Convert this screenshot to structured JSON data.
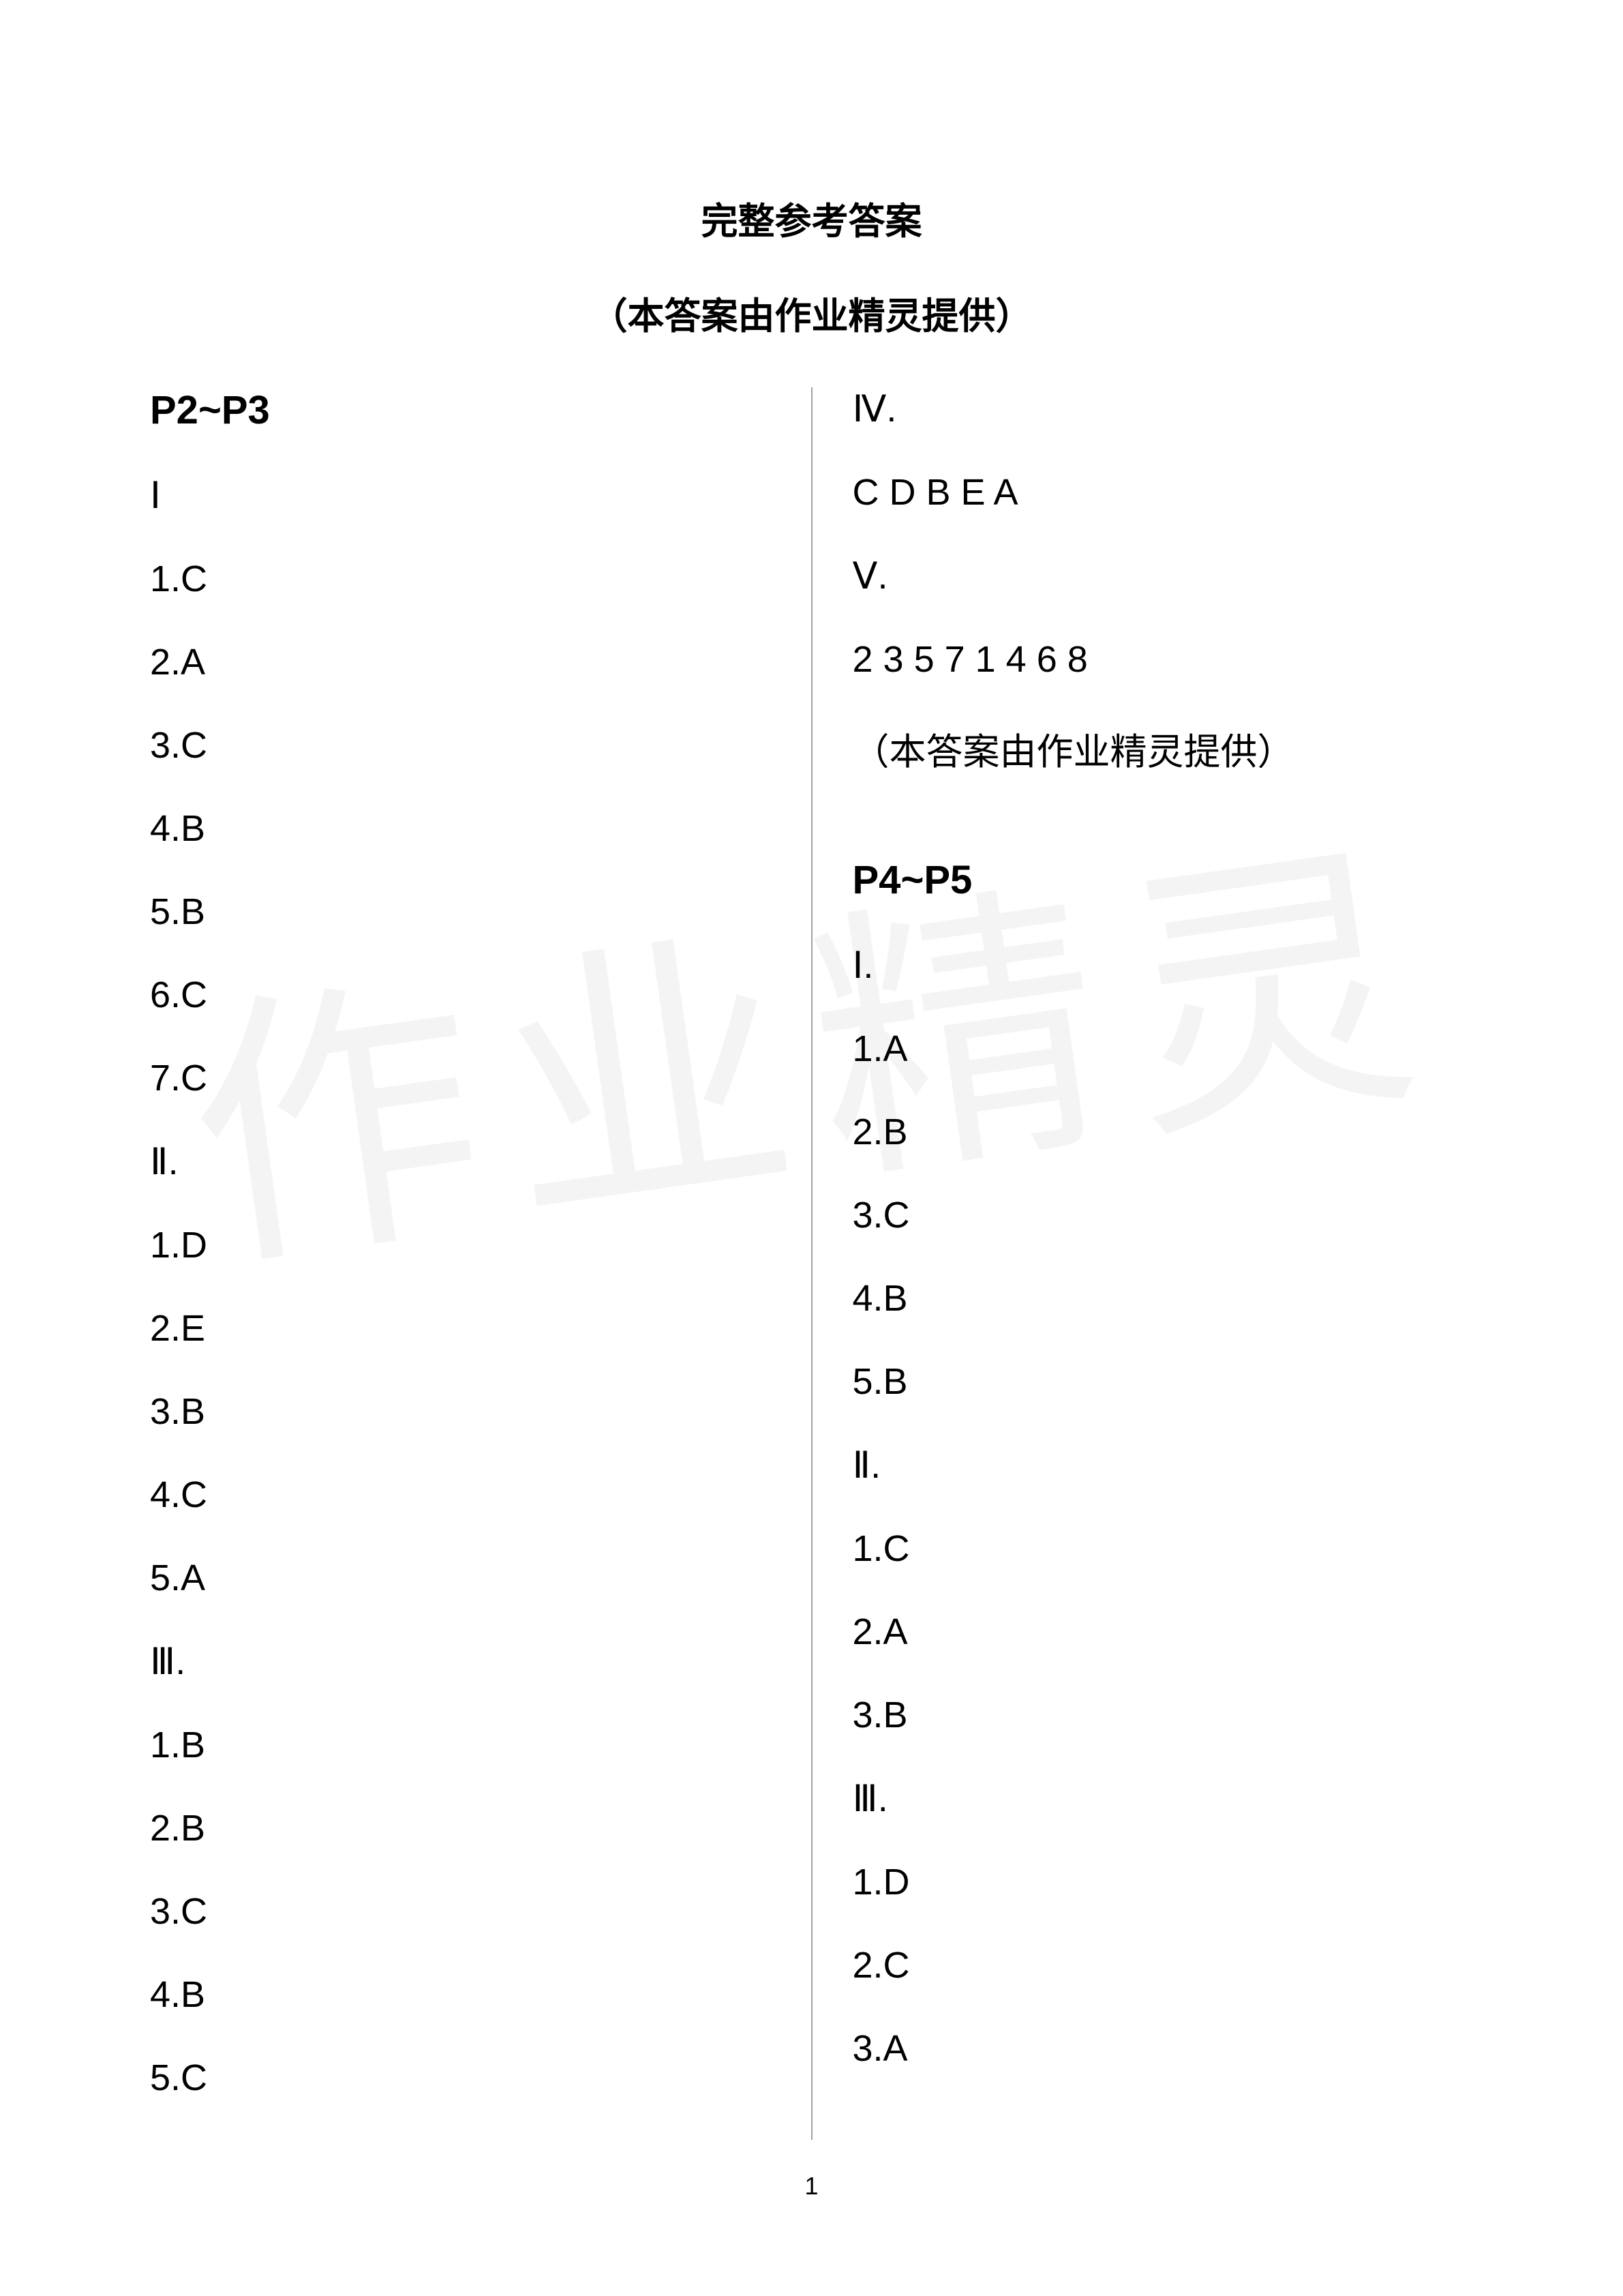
{
  "title": "完整参考答案",
  "subtitle": "（本答案由作业精灵提供）",
  "watermark_text": "作业精灵",
  "page_number": "1",
  "colors": {
    "text": "#000000",
    "background": "#ffffff",
    "divider": "#a0a0a0",
    "watermark": "#f0f0f0"
  },
  "typography": {
    "title_fontsize": 54,
    "header_fontsize": 58,
    "body_fontsize": 54,
    "pagenum_fontsize": 36,
    "font_family": "Microsoft YaHei"
  },
  "left_column": [
    {
      "type": "header",
      "text": "P2~P3"
    },
    {
      "type": "item",
      "text": "Ⅰ"
    },
    {
      "type": "item",
      "text": "1.C"
    },
    {
      "type": "item",
      "text": "2.A"
    },
    {
      "type": "item",
      "text": "3.C"
    },
    {
      "type": "item",
      "text": "4.B"
    },
    {
      "type": "item",
      "text": "5.B"
    },
    {
      "type": "item",
      "text": "6.C"
    },
    {
      "type": "item",
      "text": "7.C"
    },
    {
      "type": "item",
      "text": "Ⅱ."
    },
    {
      "type": "item",
      "text": "1.D"
    },
    {
      "type": "item",
      "text": "2.E"
    },
    {
      "type": "item",
      "text": "3.B"
    },
    {
      "type": "item",
      "text": "4.C"
    },
    {
      "type": "item",
      "text": "5.A"
    },
    {
      "type": "item",
      "text": "Ⅲ."
    },
    {
      "type": "item",
      "text": "1.B"
    },
    {
      "type": "item",
      "text": "2.B"
    },
    {
      "type": "item",
      "text": "3.C"
    },
    {
      "type": "item",
      "text": "4.B"
    },
    {
      "type": "item",
      "text": "5.C"
    }
  ],
  "right_column": [
    {
      "type": "item",
      "text": "Ⅳ."
    },
    {
      "type": "item",
      "text": "C  D  B  E  A"
    },
    {
      "type": "item",
      "text": "Ⅴ."
    },
    {
      "type": "item",
      "text": "2  3  5  7  1  4  6  8"
    },
    {
      "type": "item",
      "text": "（本答案由作业精灵提供）"
    },
    {
      "type": "spacer",
      "text": ""
    },
    {
      "type": "header",
      "text": "P4~P5"
    },
    {
      "type": "item",
      "text": "Ⅰ."
    },
    {
      "type": "item",
      "text": "1.A"
    },
    {
      "type": "item",
      "text": "2.B"
    },
    {
      "type": "item",
      "text": "3.C"
    },
    {
      "type": "item",
      "text": "4.B"
    },
    {
      "type": "item",
      "text": "5.B"
    },
    {
      "type": "item",
      "text": "Ⅱ."
    },
    {
      "type": "item",
      "text": "1.C"
    },
    {
      "type": "item",
      "text": "2.A"
    },
    {
      "type": "item",
      "text": "3.B"
    },
    {
      "type": "item",
      "text": "Ⅲ."
    },
    {
      "type": "item",
      "text": "1.D"
    },
    {
      "type": "item",
      "text": "2.C"
    },
    {
      "type": "item",
      "text": "3.A"
    }
  ]
}
